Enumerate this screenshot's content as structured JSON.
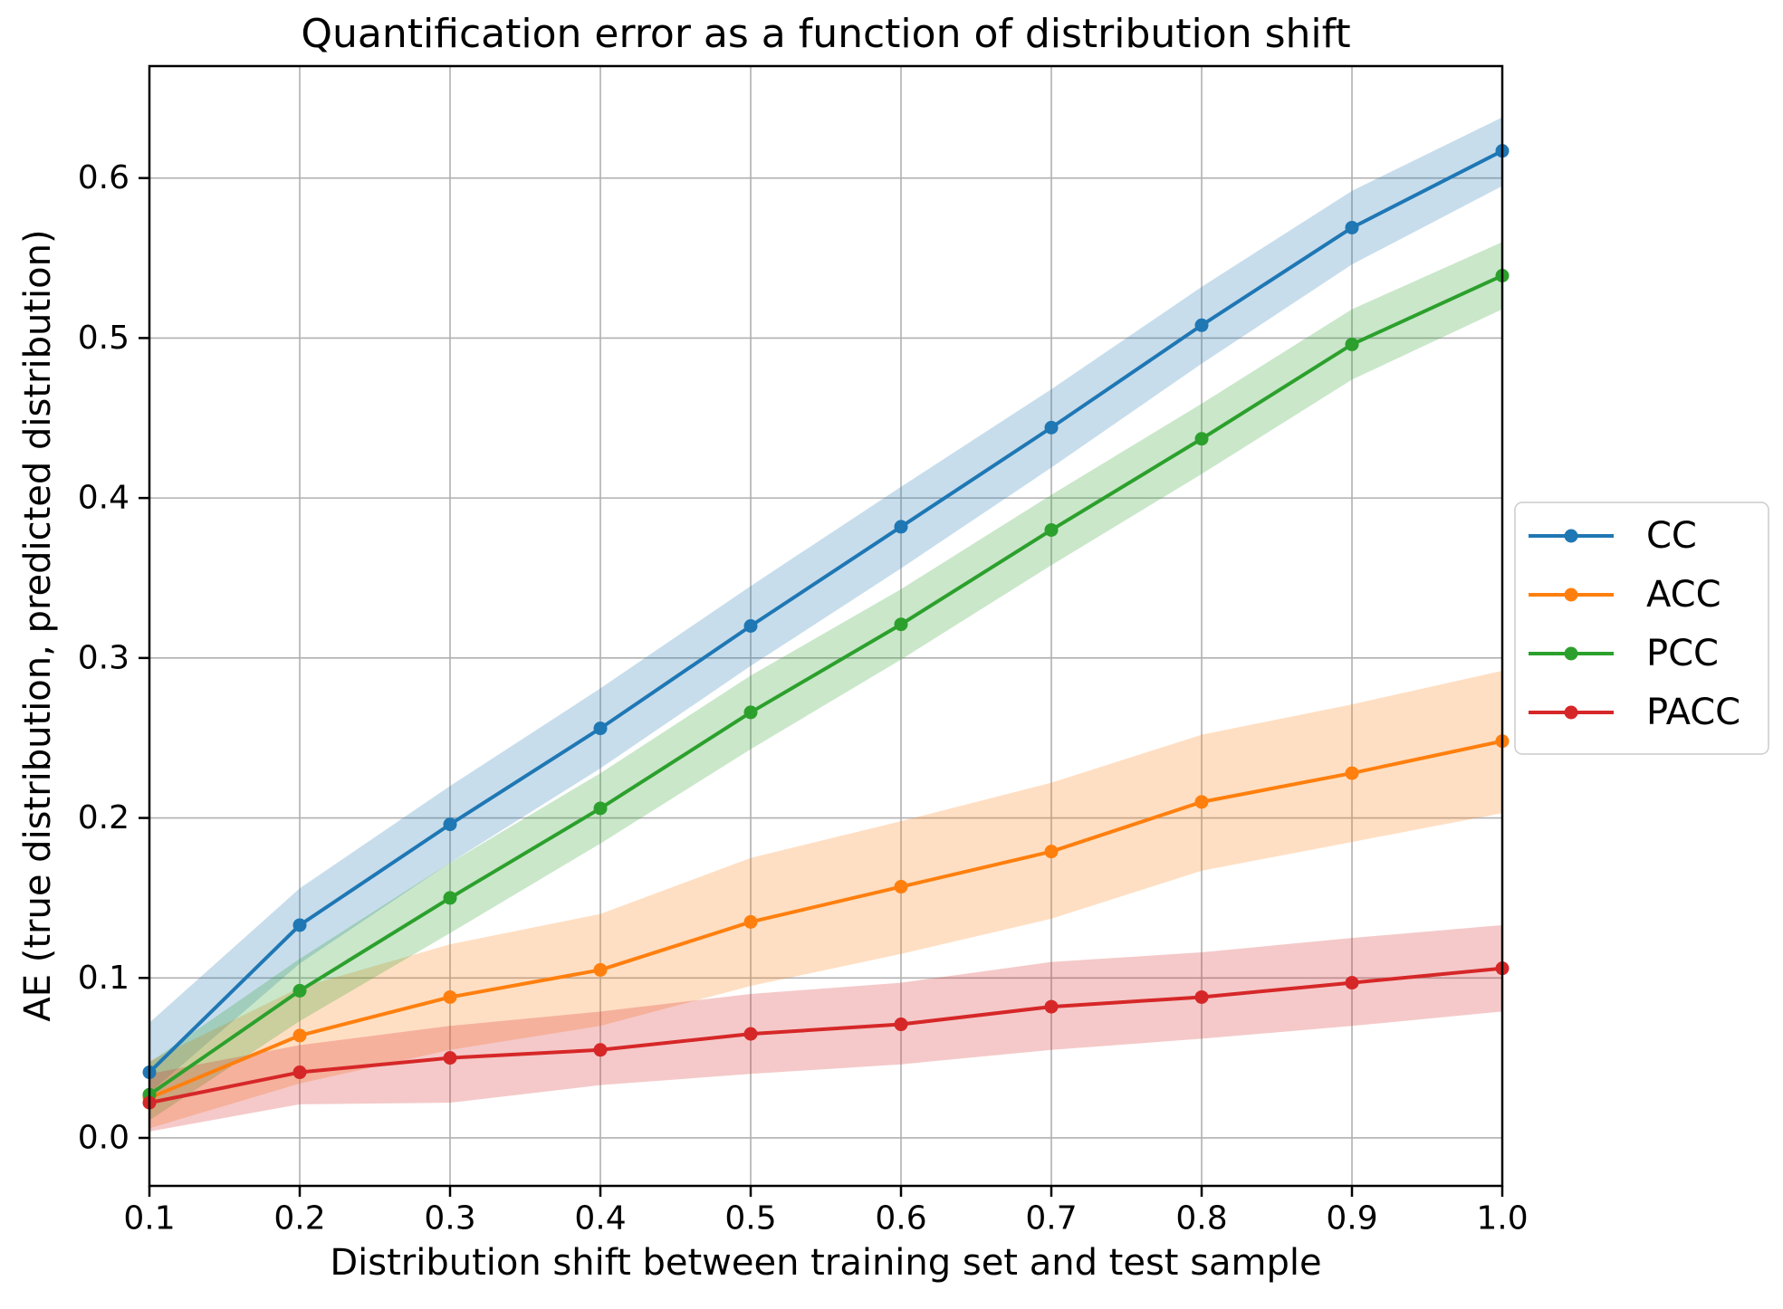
{
  "chart_data": {
    "type": "line",
    "title": "Quantification error as a function of distribution shift",
    "xlabel": "Distribution shift between training set and test sample",
    "ylabel": "AE (true distribution, predicted distribution)",
    "x": [
      0.1,
      0.2,
      0.3,
      0.4,
      0.5,
      0.6,
      0.7,
      0.8,
      0.9,
      1.0
    ],
    "xtick_labels": [
      "0.1",
      "0.2",
      "0.3",
      "0.4",
      "0.5",
      "0.6",
      "0.7",
      "0.8",
      "0.9",
      "1.0"
    ],
    "yticks": [
      0.0,
      0.1,
      0.2,
      0.3,
      0.4,
      0.5,
      0.6
    ],
    "ytick_labels": [
      "0.0",
      "0.1",
      "0.2",
      "0.3",
      "0.4",
      "0.5",
      "0.6"
    ],
    "xlim": [
      0.1,
      1.0
    ],
    "ylim": [
      -0.03,
      0.67
    ],
    "grid": true,
    "legend_position": "outside-right",
    "band_opacity": 0.25,
    "colors": {
      "background": "#ffffff",
      "grid": "#b0b0b0",
      "spine": "#000000",
      "legend_border": "#cccccc",
      "text": "#000000"
    },
    "series": [
      {
        "name": "CC",
        "color": "#1f77b4",
        "values": [
          0.041,
          0.133,
          0.196,
          0.256,
          0.32,
          0.382,
          0.444,
          0.508,
          0.569,
          0.617
        ],
        "band_lower": [
          0.028,
          0.109,
          0.172,
          0.231,
          0.295,
          0.356,
          0.419,
          0.484,
          0.546,
          0.595
        ],
        "band_upper": [
          0.072,
          0.156,
          0.22,
          0.281,
          0.345,
          0.407,
          0.468,
          0.532,
          0.592,
          0.638
        ]
      },
      {
        "name": "ACC",
        "color": "#ff7f0e",
        "values": [
          0.025,
          0.064,
          0.088,
          0.105,
          0.135,
          0.157,
          0.179,
          0.21,
          0.228,
          0.248
        ],
        "band_lower": [
          0.006,
          0.034,
          0.055,
          0.07,
          0.095,
          0.115,
          0.137,
          0.167,
          0.185,
          0.203
        ],
        "band_upper": [
          0.048,
          0.094,
          0.121,
          0.14,
          0.175,
          0.198,
          0.222,
          0.252,
          0.271,
          0.292
        ]
      },
      {
        "name": "PCC",
        "color": "#2ca02c",
        "values": [
          0.027,
          0.092,
          0.15,
          0.206,
          0.266,
          0.321,
          0.38,
          0.437,
          0.496,
          0.539
        ],
        "band_lower": [
          0.011,
          0.073,
          0.128,
          0.184,
          0.243,
          0.299,
          0.358,
          0.415,
          0.474,
          0.518
        ],
        "band_upper": [
          0.047,
          0.112,
          0.172,
          0.228,
          0.289,
          0.343,
          0.402,
          0.459,
          0.518,
          0.56
        ]
      },
      {
        "name": "PACC",
        "color": "#d62728",
        "values": [
          0.022,
          0.041,
          0.05,
          0.055,
          0.065,
          0.071,
          0.082,
          0.088,
          0.097,
          0.106
        ],
        "band_lower": [
          0.004,
          0.021,
          0.022,
          0.033,
          0.04,
          0.046,
          0.055,
          0.062,
          0.07,
          0.079
        ],
        "band_upper": [
          0.04,
          0.058,
          0.07,
          0.079,
          0.09,
          0.097,
          0.11,
          0.116,
          0.125,
          0.133
        ]
      }
    ]
  }
}
